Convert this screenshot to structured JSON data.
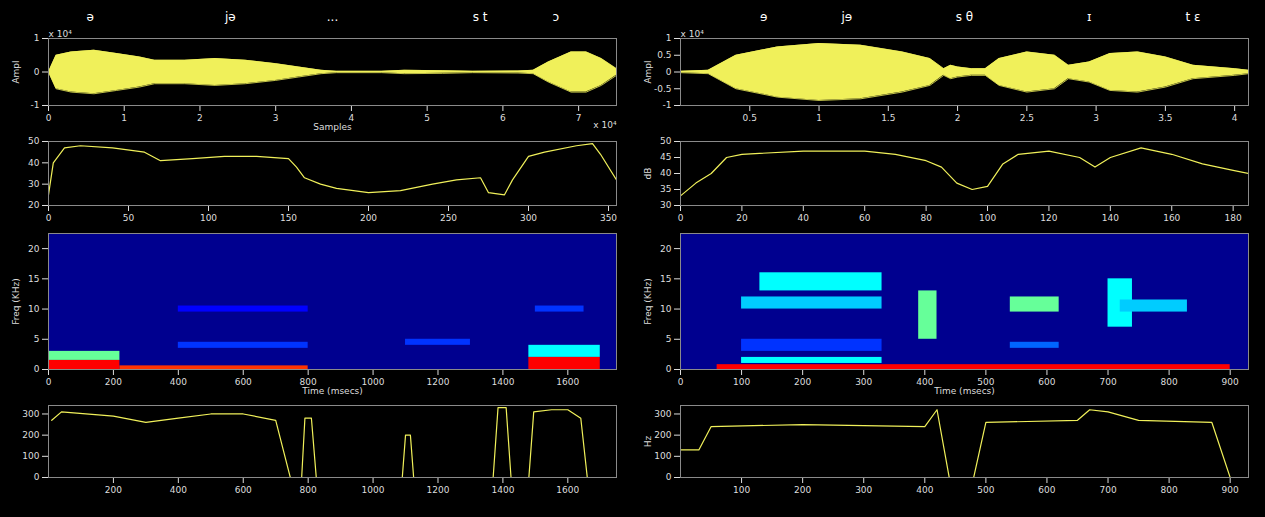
{
  "chart_data": [
    {
      "type": "area",
      "y_label": "Ampl",
      "x_label": "Samples",
      "y_exponent": "x 10⁴",
      "x_exponent": "x 10⁴",
      "xlim": [
        0,
        7.5
      ],
      "xticks": [
        0,
        1,
        2,
        3,
        4,
        5,
        6,
        7
      ],
      "ylim": [
        -1,
        1
      ],
      "yticks": [
        -1,
        0,
        1
      ],
      "annotations": [
        {
          "text": "ə",
          "x": 0.55
        },
        {
          "text": "jə",
          "x": 2.4
        },
        {
          "text": "...",
          "x": 3.75
        },
        {
          "text": "s t",
          "x": 5.7
        },
        {
          "text": "ɔ",
          "x": 6.7
        }
      ],
      "x": [
        0,
        0.1,
        0.3,
        0.6,
        0.9,
        1.2,
        1.4,
        1.8,
        2.2,
        2.6,
        3.0,
        3.3,
        3.6,
        3.8,
        4.4,
        4.7,
        5.2,
        5.6,
        6.2,
        6.4,
        6.6,
        6.9,
        7.1,
        7.3,
        7.5
      ],
      "values": [
        0,
        0.5,
        0.6,
        0.65,
        0.55,
        0.45,
        0.35,
        0.35,
        0.4,
        0.35,
        0.25,
        0.15,
        0.05,
        0.02,
        0.02,
        0.05,
        0.04,
        0.02,
        0.03,
        0.05,
        0.3,
        0.6,
        0.6,
        0.4,
        0.1
      ]
    },
    {
      "type": "line",
      "xlim": [
        0,
        355
      ],
      "xticks": [
        0,
        50,
        100,
        150,
        200,
        250,
        300,
        350
      ],
      "ylim": [
        20,
        50
      ],
      "yticks": [
        20,
        30,
        40,
        50
      ],
      "x": [
        0,
        3,
        10,
        20,
        40,
        60,
        70,
        90,
        110,
        130,
        150,
        155,
        160,
        170,
        180,
        200,
        220,
        240,
        255,
        270,
        275,
        285,
        290,
        300,
        310,
        330,
        340,
        345,
        355
      ],
      "values": [
        25,
        40,
        47,
        48,
        47,
        45,
        41,
        42,
        43,
        43,
        42,
        38,
        33,
        30,
        28,
        26,
        27,
        30,
        32,
        33,
        26,
        25,
        32,
        43,
        45,
        48,
        49,
        44,
        32
      ]
    },
    {
      "type": "heatmap",
      "y_label": "Freq (KHz)",
      "x_label": "Time (msecs)",
      "xlim": [
        0,
        1750
      ],
      "xticks": [
        0,
        200,
        400,
        600,
        800,
        1000,
        1200,
        1400,
        1600
      ],
      "ylim": [
        0,
        22.5
      ],
      "yticks": [
        0,
        5,
        10,
        15,
        20
      ],
      "cells": [
        {
          "t0": 0,
          "t1": 220,
          "f0": 1.5,
          "f1": 3,
          "level": 0.6
        },
        {
          "t0": 0,
          "t1": 220,
          "f0": 0,
          "f1": 1.5,
          "level": 1
        },
        {
          "t0": 220,
          "t1": 800,
          "f0": 0,
          "f1": 0.6,
          "level": 0.95
        },
        {
          "t0": 400,
          "t1": 800,
          "f0": 3.5,
          "f1": 4.5,
          "level": 0.3
        },
        {
          "t0": 400,
          "t1": 800,
          "f0": 9.5,
          "f1": 10.5,
          "level": 0.25
        },
        {
          "t0": 1100,
          "t1": 1300,
          "f0": 4,
          "f1": 5,
          "level": 0.3
        },
        {
          "t0": 1480,
          "t1": 1700,
          "f0": 2,
          "f1": 4,
          "level": 0.5
        },
        {
          "t0": 1480,
          "t1": 1700,
          "f0": 0,
          "f1": 2,
          "level": 1
        },
        {
          "t0": 1500,
          "t1": 1650,
          "f0": 9.5,
          "f1": 10.5,
          "level": 0.3
        }
      ]
    },
    {
      "type": "line",
      "xlim": [
        0,
        1750
      ],
      "xticks": [
        200,
        400,
        600,
        800,
        1000,
        1200,
        1400,
        1600
      ],
      "ylim": [
        0,
        340
      ],
      "yticks": [
        0,
        100,
        200,
        300
      ],
      "x": [
        10,
        40,
        200,
        300,
        400,
        500,
        600,
        700,
        745,
        780,
        790,
        810,
        825,
        1090,
        1100,
        1115,
        1125,
        1370,
        1385,
        1410,
        1425,
        1480,
        1495,
        1550,
        1600,
        1640,
        1660,
        1750
      ],
      "values": [
        270,
        310,
        290,
        260,
        280,
        300,
        300,
        270,
        0,
        0,
        280,
        280,
        0,
        0,
        200,
        200,
        0,
        0,
        330,
        330,
        0,
        0,
        310,
        320,
        320,
        280,
        0,
        0
      ]
    },
    {
      "type": "area",
      "y_label": "Ampl",
      "y_exponent": "x 10⁴",
      "xlim": [
        0,
        4.1
      ],
      "xticks": [
        0.5,
        1,
        1.5,
        2,
        2.5,
        3,
        3.5,
        4
      ],
      "ylim": [
        -1,
        1
      ],
      "yticks": [
        -1,
        -0.5,
        0,
        0.5,
        1
      ],
      "annotations": [
        {
          "text": "ɘ",
          "x": 0.6
        },
        {
          "text": "jɘ",
          "x": 1.2
        },
        {
          "text": "s θ",
          "x": 2.05
        },
        {
          "text": "ɪ",
          "x": 2.95
        },
        {
          "text": "t ɛ",
          "x": 3.7
        }
      ],
      "x": [
        0,
        0.2,
        0.4,
        0.7,
        1.0,
        1.3,
        1.6,
        1.8,
        1.9,
        1.95,
        2.0,
        2.1,
        2.2,
        2.3,
        2.5,
        2.7,
        2.8,
        2.95,
        3.1,
        3.3,
        3.5,
        3.7,
        4.0,
        4.1
      ],
      "values": [
        0.02,
        0.05,
        0.5,
        0.75,
        0.85,
        0.8,
        0.6,
        0.4,
        0.1,
        0.2,
        0.15,
        0.1,
        0.1,
        0.4,
        0.6,
        0.5,
        0.2,
        0.3,
        0.55,
        0.6,
        0.45,
        0.2,
        0.1,
        0.05
      ]
    },
    {
      "type": "line",
      "y_label": "dB",
      "xlim": [
        0,
        185
      ],
      "xticks": [
        0,
        20,
        40,
        60,
        80,
        100,
        120,
        140,
        160,
        180
      ],
      "ylim": [
        30,
        50
      ],
      "yticks": [
        30,
        35,
        40,
        45,
        50
      ],
      "x": [
        0,
        5,
        10,
        15,
        20,
        40,
        60,
        70,
        80,
        85,
        90,
        95,
        100,
        105,
        110,
        120,
        130,
        135,
        140,
        150,
        160,
        170,
        180,
        185
      ],
      "values": [
        33,
        37,
        40,
        45,
        46,
        47,
        47,
        46,
        44,
        42,
        37,
        35,
        36,
        43,
        46,
        47,
        45,
        42,
        45,
        48,
        46,
        43,
        41,
        40
      ]
    },
    {
      "type": "heatmap",
      "y_label": "Freq (KHz)",
      "x_label": "Time (msecs)",
      "xlim": [
        0,
        930
      ],
      "xticks": [
        0,
        100,
        200,
        300,
        400,
        500,
        600,
        700,
        800,
        900
      ],
      "ylim": [
        0,
        22.5
      ],
      "yticks": [
        0,
        5,
        10,
        15,
        20
      ],
      "cells": [
        {
          "t0": 100,
          "t1": 330,
          "f0": 1,
          "f1": 2,
          "level": 0.5
        },
        {
          "t0": 100,
          "t1": 330,
          "f0": 3,
          "f1": 5,
          "level": 0.3
        },
        {
          "t0": 100,
          "t1": 330,
          "f0": 10,
          "f1": 12,
          "level": 0.45
        },
        {
          "t0": 130,
          "t1": 330,
          "f0": 13,
          "f1": 16,
          "level": 0.5
        },
        {
          "t0": 390,
          "t1": 420,
          "f0": 5,
          "f1": 13,
          "level": 0.6
        },
        {
          "t0": 540,
          "t1": 620,
          "f0": 9.5,
          "f1": 12,
          "level": 0.6
        },
        {
          "t0": 540,
          "t1": 620,
          "f0": 3.5,
          "f1": 4.5,
          "level": 0.35
        },
        {
          "t0": 700,
          "t1": 740,
          "f0": 7,
          "f1": 15,
          "level": 0.5
        },
        {
          "t0": 720,
          "t1": 830,
          "f0": 9.5,
          "f1": 11.5,
          "level": 0.45
        },
        {
          "t0": 60,
          "t1": 900,
          "f0": 0,
          "f1": 0.8,
          "level": 1
        }
      ]
    },
    {
      "type": "line",
      "y_label": "Hz",
      "xlim": [
        0,
        930
      ],
      "xticks": [
        100,
        200,
        300,
        400,
        500,
        600,
        700,
        800,
        900
      ],
      "ylim": [
        0,
        340
      ],
      "yticks": [
        0,
        100,
        200,
        300
      ],
      "x": [
        0,
        30,
        50,
        200,
        400,
        420,
        440,
        480,
        500,
        650,
        670,
        700,
        750,
        870,
        900
      ],
      "values": [
        130,
        130,
        240,
        250,
        240,
        320,
        0,
        0,
        260,
        270,
        320,
        310,
        270,
        260,
        0
      ]
    }
  ]
}
